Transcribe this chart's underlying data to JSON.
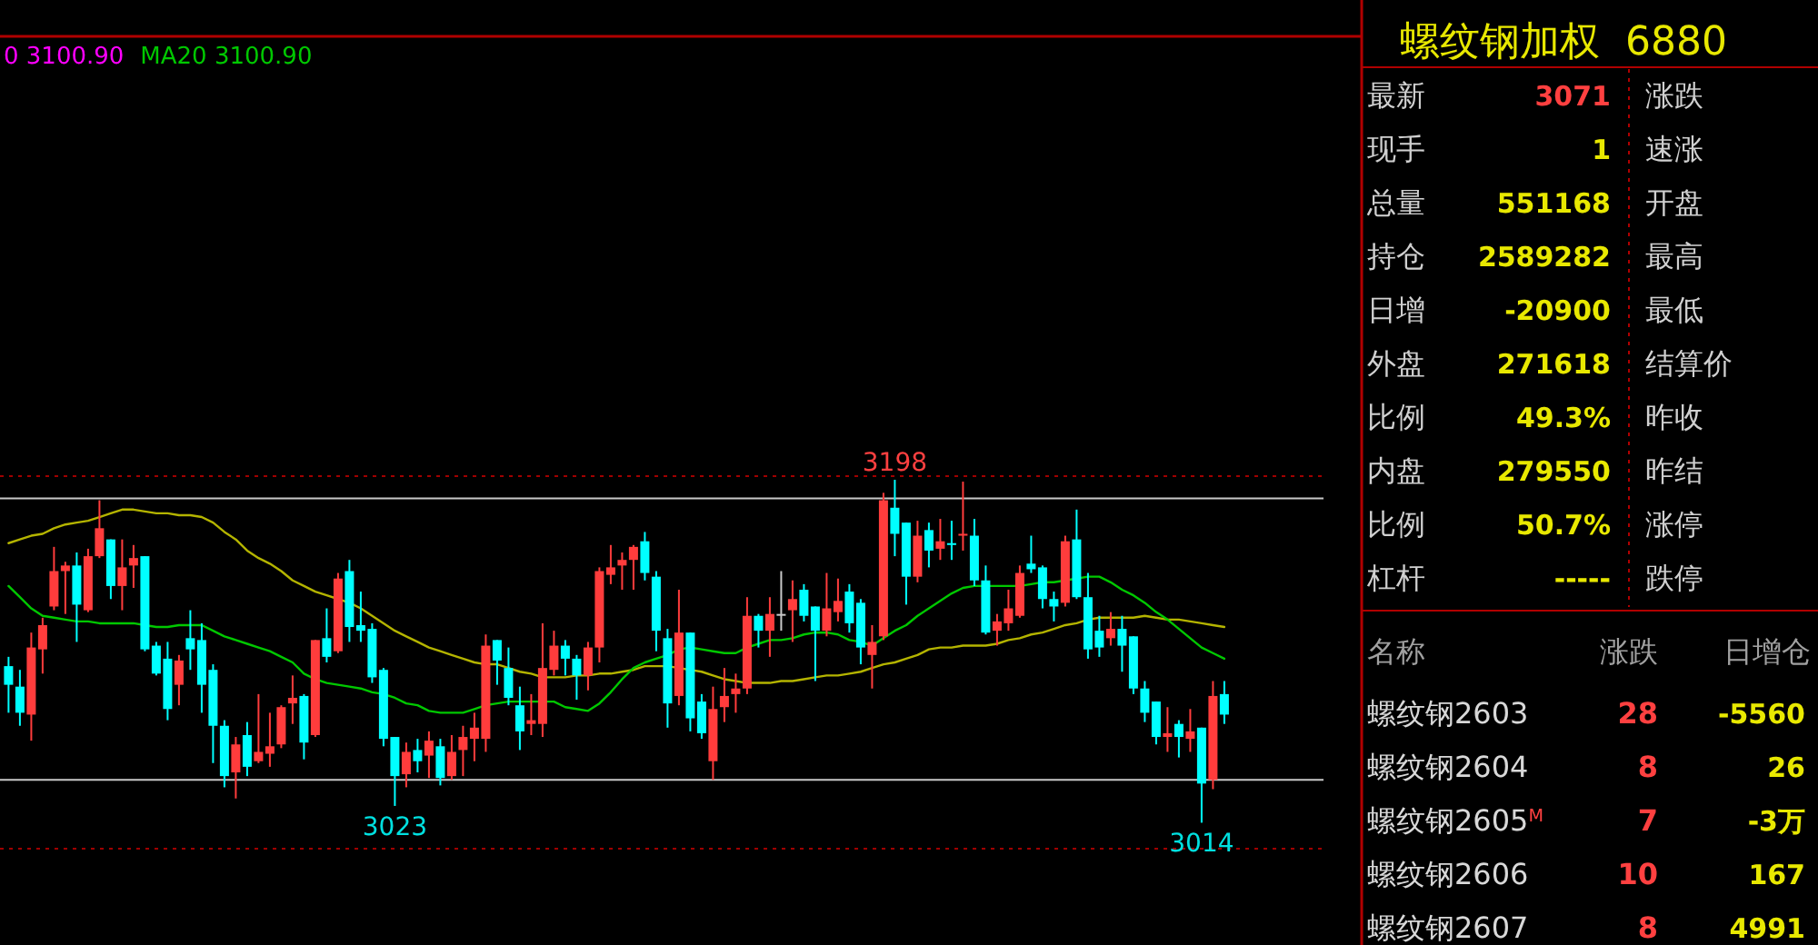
{
  "chart_data": [
    {
      "type": "candlestick",
      "categories": [
        null,
        null,
        null,
        null,
        null,
        null,
        null,
        null,
        null,
        null,
        null,
        null,
        null,
        null,
        null,
        null,
        null,
        null,
        null,
        null,
        null,
        null,
        null,
        null,
        null,
        null,
        null,
        null,
        null,
        null,
        null,
        null,
        null,
        null,
        null,
        null,
        null,
        null,
        null,
        null,
        null,
        null,
        null,
        null,
        null,
        null,
        null,
        null,
        null,
        null,
        null,
        null,
        null,
        null,
        null,
        null,
        null,
        null,
        null,
        null,
        null,
        null,
        null,
        null,
        null,
        null,
        null,
        null,
        null,
        null,
        null,
        null,
        null,
        null,
        null,
        null,
        null,
        null,
        null,
        null,
        null,
        null,
        null,
        null,
        null,
        null,
        null,
        null,
        null,
        null,
        null,
        null,
        null,
        null,
        null,
        null,
        null,
        null,
        null,
        null,
        null,
        null,
        null,
        null,
        null,
        null,
        null,
        null
      ],
      "ohlc": [
        [
          3098,
          3103,
          3073,
          3088
        ],
        [
          3087,
          3096,
          3066,
          3073
        ],
        [
          3072,
          3116,
          3058,
          3108
        ],
        [
          3107,
          3124,
          3094,
          3120
        ],
        [
          3130,
          3162,
          3128,
          3149
        ],
        [
          3149,
          3154,
          3126,
          3152
        ],
        [
          3152,
          3159,
          3111,
          3131
        ],
        [
          3128,
          3161,
          3127,
          3157
        ],
        [
          3157,
          3187,
          3156,
          3172
        ],
        [
          3166,
          3166,
          3134,
          3141
        ],
        [
          3141,
          3166,
          3128,
          3151
        ],
        [
          3152,
          3163,
          3140,
          3156
        ],
        [
          3157,
          3157,
          3106,
          3107
        ],
        [
          3109,
          3111,
          3093,
          3094
        ],
        [
          3102,
          3111,
          3069,
          3075
        ],
        [
          3088,
          3104,
          3077,
          3101
        ],
        [
          3113,
          3128,
          3096,
          3107
        ],
        [
          3112,
          3121,
          3073,
          3088
        ],
        [
          3096,
          3099,
          3046,
          3066
        ],
        [
          3066,
          3069,
          3033,
          3039
        ],
        [
          3041,
          3060,
          3027,
          3056
        ],
        [
          3061,
          3068,
          3039,
          3044
        ],
        [
          3047,
          3083,
          3046,
          3052
        ],
        [
          3051,
          3073,
          3044,
          3055
        ],
        [
          3056,
          3077,
          3054,
          3076
        ],
        [
          3078,
          3093,
          3067,
          3081
        ],
        [
          3082,
          3083,
          3048,
          3057
        ],
        [
          3061,
          3112,
          3060,
          3112
        ],
        [
          3113,
          3129,
          3100,
          3103
        ],
        [
          3106,
          3148,
          3105,
          3145
        ],
        [
          3149,
          3155,
          3111,
          3119
        ],
        [
          3120,
          3138,
          3111,
          3117
        ],
        [
          3118,
          3121,
          3089,
          3092
        ],
        [
          3096,
          3097,
          3055,
          3059
        ],
        [
          3060,
          3060,
          3023,
          3039
        ],
        [
          3040,
          3057,
          3033,
          3052
        ],
        [
          3053,
          3059,
          3041,
          3047
        ],
        [
          3050,
          3063,
          3038,
          3058
        ],
        [
          3055,
          3059,
          3034,
          3038
        ],
        [
          3039,
          3061,
          3037,
          3052
        ],
        [
          3053,
          3066,
          3039,
          3060
        ],
        [
          3059,
          3073,
          3047,
          3065
        ],
        [
          3059,
          3115,
          3052,
          3109
        ],
        [
          3112,
          3112,
          3088,
          3101
        ],
        [
          3097,
          3108,
          3077,
          3081
        ],
        [
          3077,
          3087,
          3053,
          3063
        ],
        [
          3067,
          3083,
          3061,
          3069
        ],
        [
          3067,
          3121,
          3060,
          3097
        ],
        [
          3096,
          3117,
          3093,
          3109
        ],
        [
          3109,
          3112,
          3093,
          3102
        ],
        [
          3102,
          3104,
          3080,
          3093
        ],
        [
          3093,
          3111,
          3085,
          3108
        ],
        [
          3108,
          3151,
          3100,
          3149
        ],
        [
          3147,
          3163,
          3142,
          3151
        ],
        [
          3152,
          3159,
          3139,
          3155
        ],
        [
          3155,
          3163,
          3139,
          3162
        ],
        [
          3165,
          3170,
          3144,
          3148
        ],
        [
          3146,
          3149,
          3106,
          3117
        ],
        [
          3113,
          3118,
          3065,
          3078
        ],
        [
          3082,
          3139,
          3077,
          3116
        ],
        [
          3116,
          3116,
          3063,
          3070
        ],
        [
          3079,
          3083,
          3059,
          3062
        ],
        [
          3047,
          3087,
          3037,
          3075
        ],
        [
          3076,
          3097,
          3068,
          3082
        ],
        [
          3083,
          3094,
          3073,
          3086
        ],
        [
          3086,
          3135,
          3083,
          3125
        ],
        [
          3125,
          3126,
          3108,
          3117
        ],
        [
          3117,
          3135,
          3103,
          3126
        ],
        [
          3126,
          3149,
          3117,
          3126
        ],
        [
          3128,
          3144,
          3111,
          3134
        ],
        [
          3139,
          3142,
          3122,
          3125
        ],
        [
          3130,
          3130,
          3090,
          3117
        ],
        [
          3117,
          3148,
          3114,
          3129
        ],
        [
          3127,
          3145,
          3122,
          3133
        ],
        [
          3138,
          3142,
          3116,
          3121
        ],
        [
          3132,
          3134,
          3099,
          3108
        ],
        [
          3104,
          3120,
          3086,
          3111
        ],
        [
          3114,
          3191,
          3112,
          3187
        ],
        [
          3183,
          3198,
          3157,
          3169
        ],
        [
          3175,
          3175,
          3131,
          3146
        ],
        [
          3146,
          3176,
          3143,
          3168
        ],
        [
          3171,
          3175,
          3151,
          3160
        ],
        [
          3161,
          3177,
          3155,
          3165
        ],
        [
          3164,
          3176,
          3155,
          3163
        ],
        [
          3168,
          3197,
          3160,
          3169
        ],
        [
          3168,
          3177,
          3141,
          3144
        ],
        [
          3144,
          3152,
          3115,
          3116
        ],
        [
          3117,
          3126,
          3109,
          3122
        ],
        [
          3121,
          3139,
          3117,
          3129
        ],
        [
          3125,
          3152,
          3124,
          3148
        ],
        [
          3153,
          3168,
          3148,
          3150
        ],
        [
          3151,
          3152,
          3129,
          3134
        ],
        [
          3134,
          3138,
          3122,
          3130
        ],
        [
          3132,
          3168,
          3130,
          3165
        ],
        [
          3166,
          3182,
          3134,
          3135
        ],
        [
          3135,
          3148,
          3102,
          3107
        ],
        [
          3117,
          3125,
          3103,
          3108
        ],
        [
          3113,
          3127,
          3109,
          3118
        ],
        [
          3118,
          3125,
          3095,
          3109
        ],
        [
          3114,
          3114,
          3083,
          3086
        ],
        [
          3086,
          3090,
          3068,
          3073
        ],
        [
          3079,
          3079,
          3056,
          3060
        ],
        [
          3060,
          3076,
          3052,
          3062
        ],
        [
          3067,
          3069,
          3049,
          3060
        ],
        [
          3059,
          3075,
          3052,
          3063
        ],
        [
          3065,
          3065,
          3014,
          3035
        ],
        [
          3037,
          3090,
          3032,
          3082
        ],
        [
          3083,
          3090,
          3067,
          3072
        ]
      ],
      "series": [
        {
          "type": "line",
          "color": "#b4b400",
          "values": [
            3164,
            3166,
            3168,
            3169,
            3172,
            3174,
            3175,
            3176,
            3178,
            3180,
            3182,
            3182,
            3181,
            3180,
            3180,
            3179,
            3179,
            3178,
            3175,
            3170,
            3166,
            3160,
            3156,
            3153,
            3149,
            3144,
            3141,
            3138,
            3136,
            3134,
            3132,
            3129,
            3125,
            3121,
            3117,
            3114,
            3111,
            3108,
            3106,
            3104,
            3102,
            3100,
            3099,
            3099,
            3097,
            3095,
            3094,
            3092,
            3092,
            3092,
            3093,
            3093,
            3094,
            3094,
            3095,
            3096,
            3098,
            3098,
            3098,
            3097,
            3096,
            3095,
            3093,
            3091,
            3090,
            3089,
            3089,
            3089,
            3090,
            3090,
            3091,
            3092,
            3093,
            3093,
            3094,
            3095,
            3097,
            3099,
            3100,
            3102,
            3104,
            3107,
            3108,
            3108,
            3109,
            3109,
            3109,
            3110,
            3112,
            3113,
            3115,
            3116,
            3118,
            3120,
            3121,
            3123,
            3124,
            3124,
            3124,
            3124,
            3125,
            3124,
            3123,
            3123,
            3122,
            3121,
            3120,
            3119
          ]
        },
        {
          "type": "line",
          "name": "MA20 3100.90",
          "color": "#00c800",
          "values": [
            3141,
            3135,
            3129,
            3125,
            3124,
            3123,
            3122,
            3122,
            3121,
            3121,
            3121,
            3121,
            3120,
            3119,
            3119,
            3120,
            3120,
            3120,
            3117,
            3114,
            3112,
            3110,
            3108,
            3106,
            3103,
            3100,
            3094,
            3091,
            3089,
            3088,
            3087,
            3086,
            3084,
            3083,
            3081,
            3078,
            3077,
            3074,
            3073,
            3073,
            3073,
            3075,
            3077,
            3078,
            3079,
            3079,
            3079,
            3079,
            3079,
            3076,
            3075,
            3074,
            3078,
            3084,
            3091,
            3097,
            3100,
            3102,
            3104,
            3107,
            3108,
            3107,
            3106,
            3105,
            3105,
            3108,
            3110,
            3112,
            3112,
            3113,
            3115,
            3116,
            3116,
            3115,
            3112,
            3111,
            3109,
            3113,
            3117,
            3120,
            3125,
            3129,
            3133,
            3137,
            3140,
            3141,
            3141,
            3141,
            3141,
            3141,
            3142,
            3143,
            3143,
            3144,
            3145,
            3146,
            3146,
            3143,
            3139,
            3136,
            3132,
            3127,
            3123,
            3118,
            3113,
            3108,
            3105,
            3102
          ]
        }
      ],
      "ref_lines": [
        {
          "axis": "y",
          "value": 3200,
          "color": "#a00000",
          "line_style": "dotted"
        },
        {
          "axis": "y",
          "value": 3000,
          "color": "#a00000",
          "line_style": "dotted"
        },
        {
          "axis": "y",
          "value": 3188,
          "color": "#c8c8c8",
          "line_style": "solid"
        },
        {
          "axis": "y",
          "value": 3037,
          "color": "#c8c8c8",
          "line_style": "solid"
        }
      ],
      "annotations": [
        "0 3100.90",
        {
          "text": "3198",
          "y": 3198
        },
        {
          "text": "3023",
          "y": 3023
        },
        {
          "text": "3014",
          "y": 3014
        }
      ]
    },
    {
      "type": "other",
      "title": "螺纹钢加权  6880",
      "annotations": [
        "最新",
        "3071",
        "现手",
        "1",
        "总量",
        "551168",
        "持仓",
        "2589282",
        "日增",
        "-20900",
        "外盘",
        "271618",
        "比例",
        "49.3%",
        "内盘",
        "279550",
        "比例",
        "50.7%",
        "杠杆",
        "-----",
        "涨跌",
        "速涨",
        "开盘",
        "最高",
        "最低",
        "结算价",
        "昨收",
        "昨结",
        "涨停",
        "跌停",
        "名称",
        "涨跌",
        "日增仓",
        "螺纹钢2603",
        "28",
        "-5560",
        "螺纹钢2604",
        "8",
        "26",
        "螺纹钢2605$^{M}$",
        "7",
        "-3万",
        "螺纹钢2606",
        "10",
        "167",
        "螺纹钢2607",
        "8",
        "4991"
      ]
    }
  ]
}
